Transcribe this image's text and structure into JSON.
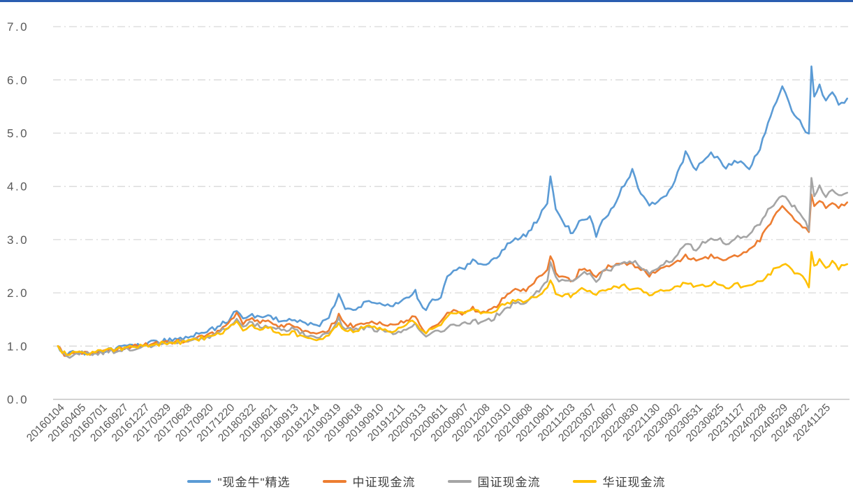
{
  "page": {
    "top_rule_color": "#2A5DB0",
    "background": "#FFFFFF"
  },
  "chart_data": {
    "type": "line",
    "title": "",
    "xlabel": "",
    "ylabel": "",
    "ylim": [
      0,
      7
    ],
    "y_tick_labels": [
      "0.0",
      "1.0",
      "2.0",
      "3.0",
      "4.0",
      "5.0",
      "6.0",
      "7.0"
    ],
    "grid": {
      "horizontal": true,
      "style": "dash-dot",
      "color": "#D9D9D9"
    },
    "axis_label_color": "#595959",
    "legend_position": "bottom-center",
    "x_tick_labels": [
      "20160104",
      "20160405",
      "20160701",
      "20160927",
      "20161227",
      "20170329",
      "20170628",
      "20170920",
      "20171220",
      "20180322",
      "20180621",
      "20180913",
      "20181214",
      "20190319",
      "20190618",
      "20190910",
      "20191211",
      "20200313",
      "20200611",
      "20200907",
      "20201208",
      "20210310",
      "20210608",
      "20210901",
      "20211203",
      "20220307",
      "20220607",
      "20220830",
      "20221130",
      "20230302",
      "20230531",
      "20230825",
      "20231127",
      "20240228",
      "20240529",
      "20240822",
      "20241125"
    ],
    "x_units": "quarterly tick index (0 = 20160104, 36 = 20241125), series sampled at x_keypoints",
    "x_keypoints": [
      0,
      0.2,
      0.4,
      0.7,
      1,
      1.5,
      2,
      2.5,
      3,
      3.5,
      4,
      4.5,
      5,
      5.5,
      6,
      6.5,
      7,
      7.5,
      8,
      8.4,
      8.7,
      9,
      9.5,
      10,
      10.5,
      11,
      11.5,
      12,
      12.3,
      12.6,
      13,
      13.2,
      13.5,
      14,
      14.5,
      15,
      15.5,
      16,
      16.5,
      16.8,
      17,
      17.3,
      17.6,
      18,
      18.3,
      18.6,
      19,
      19.5,
      20,
      20.5,
      21,
      21.5,
      22,
      22.5,
      23,
      23.15,
      23.4,
      23.7,
      24,
      24.2,
      24.5,
      25,
      25.3,
      25.6,
      26,
      26.5,
      27,
      27.4,
      27.8,
      28.2,
      28.6,
      29,
      29.5,
      30,
      30.3,
      30.7,
      31,
      31.4,
      31.8,
      32.1,
      32.5,
      33,
      33.5,
      34.05,
      34.5,
      35,
      35.3,
      35.42,
      35.55,
      35.8,
      36.1,
      36.4,
      36.7,
      37.1
    ],
    "series": [
      {
        "name": "\"现金牛\"精选",
        "color": "#5B9BD5",
        "values": [
          1.0,
          0.88,
          0.83,
          0.87,
          0.88,
          0.86,
          0.9,
          0.93,
          0.97,
          1.0,
          1.04,
          1.07,
          1.1,
          1.13,
          1.16,
          1.21,
          1.27,
          1.36,
          1.48,
          1.68,
          1.5,
          1.6,
          1.55,
          1.56,
          1.47,
          1.51,
          1.43,
          1.42,
          1.4,
          1.48,
          1.75,
          1.96,
          1.73,
          1.7,
          1.83,
          1.8,
          1.76,
          1.78,
          1.94,
          2.02,
          1.82,
          1.7,
          1.88,
          1.92,
          2.28,
          2.44,
          2.45,
          2.6,
          2.5,
          2.62,
          2.85,
          3.0,
          3.08,
          3.35,
          3.7,
          4.15,
          3.6,
          3.35,
          3.22,
          3.1,
          3.32,
          3.45,
          3.06,
          3.4,
          3.55,
          3.95,
          4.3,
          3.85,
          3.62,
          3.75,
          3.85,
          4.1,
          4.62,
          4.32,
          4.48,
          4.6,
          4.55,
          4.35,
          4.48,
          4.47,
          4.35,
          4.7,
          5.35,
          5.88,
          5.45,
          5.15,
          4.95,
          6.25,
          5.7,
          5.9,
          5.6,
          5.8,
          5.5,
          5.65
        ]
      },
      {
        "name": "中证现金流",
        "color": "#ED7D31",
        "values": [
          1.0,
          0.87,
          0.82,
          0.86,
          0.87,
          0.85,
          0.89,
          0.91,
          0.95,
          0.98,
          1.02,
          1.04,
          1.07,
          1.09,
          1.11,
          1.15,
          1.2,
          1.28,
          1.4,
          1.6,
          1.4,
          1.5,
          1.45,
          1.45,
          1.36,
          1.39,
          1.29,
          1.24,
          1.21,
          1.28,
          1.45,
          1.57,
          1.4,
          1.38,
          1.46,
          1.43,
          1.38,
          1.41,
          1.51,
          1.56,
          1.4,
          1.27,
          1.4,
          1.43,
          1.6,
          1.67,
          1.63,
          1.7,
          1.64,
          1.71,
          1.93,
          2.08,
          2.04,
          2.24,
          2.45,
          2.72,
          2.38,
          2.28,
          2.26,
          2.22,
          2.4,
          2.46,
          2.26,
          2.44,
          2.5,
          2.56,
          2.55,
          2.45,
          2.32,
          2.42,
          2.5,
          2.56,
          2.7,
          2.58,
          2.64,
          2.68,
          2.7,
          2.6,
          2.68,
          2.7,
          2.78,
          3.0,
          3.32,
          3.65,
          3.42,
          3.25,
          3.12,
          3.85,
          3.6,
          3.75,
          3.62,
          3.72,
          3.62,
          3.7
        ]
      },
      {
        "name": "国证现金流",
        "color": "#A5A5A5",
        "values": [
          1.0,
          0.86,
          0.8,
          0.84,
          0.86,
          0.84,
          0.88,
          0.9,
          0.93,
          0.96,
          1.0,
          1.02,
          1.05,
          1.07,
          1.09,
          1.13,
          1.17,
          1.24,
          1.35,
          1.5,
          1.34,
          1.42,
          1.38,
          1.38,
          1.29,
          1.32,
          1.23,
          1.18,
          1.16,
          1.22,
          1.38,
          1.5,
          1.33,
          1.3,
          1.35,
          1.31,
          1.26,
          1.27,
          1.36,
          1.4,
          1.27,
          1.14,
          1.25,
          1.27,
          1.37,
          1.43,
          1.41,
          1.47,
          1.45,
          1.53,
          1.7,
          1.81,
          1.81,
          2.0,
          2.22,
          2.6,
          2.28,
          2.22,
          2.22,
          2.18,
          2.34,
          2.4,
          2.22,
          2.38,
          2.45,
          2.55,
          2.6,
          2.5,
          2.38,
          2.47,
          2.56,
          2.66,
          2.92,
          2.82,
          2.92,
          3.0,
          3.02,
          2.92,
          3.02,
          3.06,
          3.1,
          3.32,
          3.62,
          3.84,
          3.66,
          3.45,
          3.2,
          4.15,
          3.85,
          3.98,
          3.82,
          3.92,
          3.8,
          3.88
        ]
      },
      {
        "name": "华证现金流",
        "color": "#FFC000",
        "values": [
          1.0,
          0.9,
          0.84,
          0.87,
          0.88,
          0.86,
          0.9,
          0.92,
          0.95,
          0.98,
          1.01,
          1.03,
          1.05,
          1.07,
          1.09,
          1.13,
          1.17,
          1.24,
          1.32,
          1.46,
          1.29,
          1.37,
          1.33,
          1.33,
          1.22,
          1.27,
          1.16,
          1.12,
          1.1,
          1.17,
          1.33,
          1.44,
          1.3,
          1.28,
          1.36,
          1.33,
          1.28,
          1.31,
          1.42,
          1.46,
          1.33,
          1.21,
          1.35,
          1.37,
          1.53,
          1.63,
          1.62,
          1.68,
          1.62,
          1.67,
          1.79,
          1.88,
          1.85,
          1.96,
          2.06,
          2.22,
          2.02,
          1.97,
          1.96,
          1.94,
          2.05,
          2.08,
          1.95,
          2.06,
          2.1,
          2.13,
          2.08,
          2.05,
          1.93,
          2.0,
          2.06,
          2.1,
          2.18,
          2.1,
          2.14,
          2.17,
          2.18,
          2.1,
          2.15,
          2.14,
          2.1,
          2.22,
          2.38,
          2.55,
          2.42,
          2.3,
          2.14,
          2.74,
          2.48,
          2.6,
          2.5,
          2.58,
          2.46,
          2.54
        ]
      }
    ]
  }
}
